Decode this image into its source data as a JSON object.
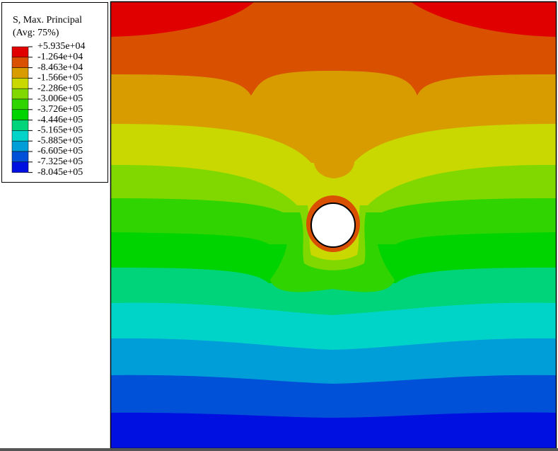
{
  "legend": {
    "title": "S, Max. Principal",
    "subtitle": "(Avg: 75%)",
    "labels": [
      "+5.935e+04",
      "-1.264e+04",
      "-8.463e+04",
      "-1.566e+05",
      "-2.286e+05",
      "-3.006e+05",
      "-3.726e+05",
      "-4.446e+05",
      "-5.165e+05",
      "-5.885e+05",
      "-6.605e+05",
      "-7.325e+05",
      "-8.045e+05"
    ],
    "colors": [
      "#e00000",
      "#d85000",
      "#d89c00",
      "#c8d800",
      "#80d800",
      "#30d400",
      "#00d400",
      "#00d47a",
      "#00d4c8",
      "#009ed8",
      "#0050d8",
      "#0010e0"
    ]
  }
}
